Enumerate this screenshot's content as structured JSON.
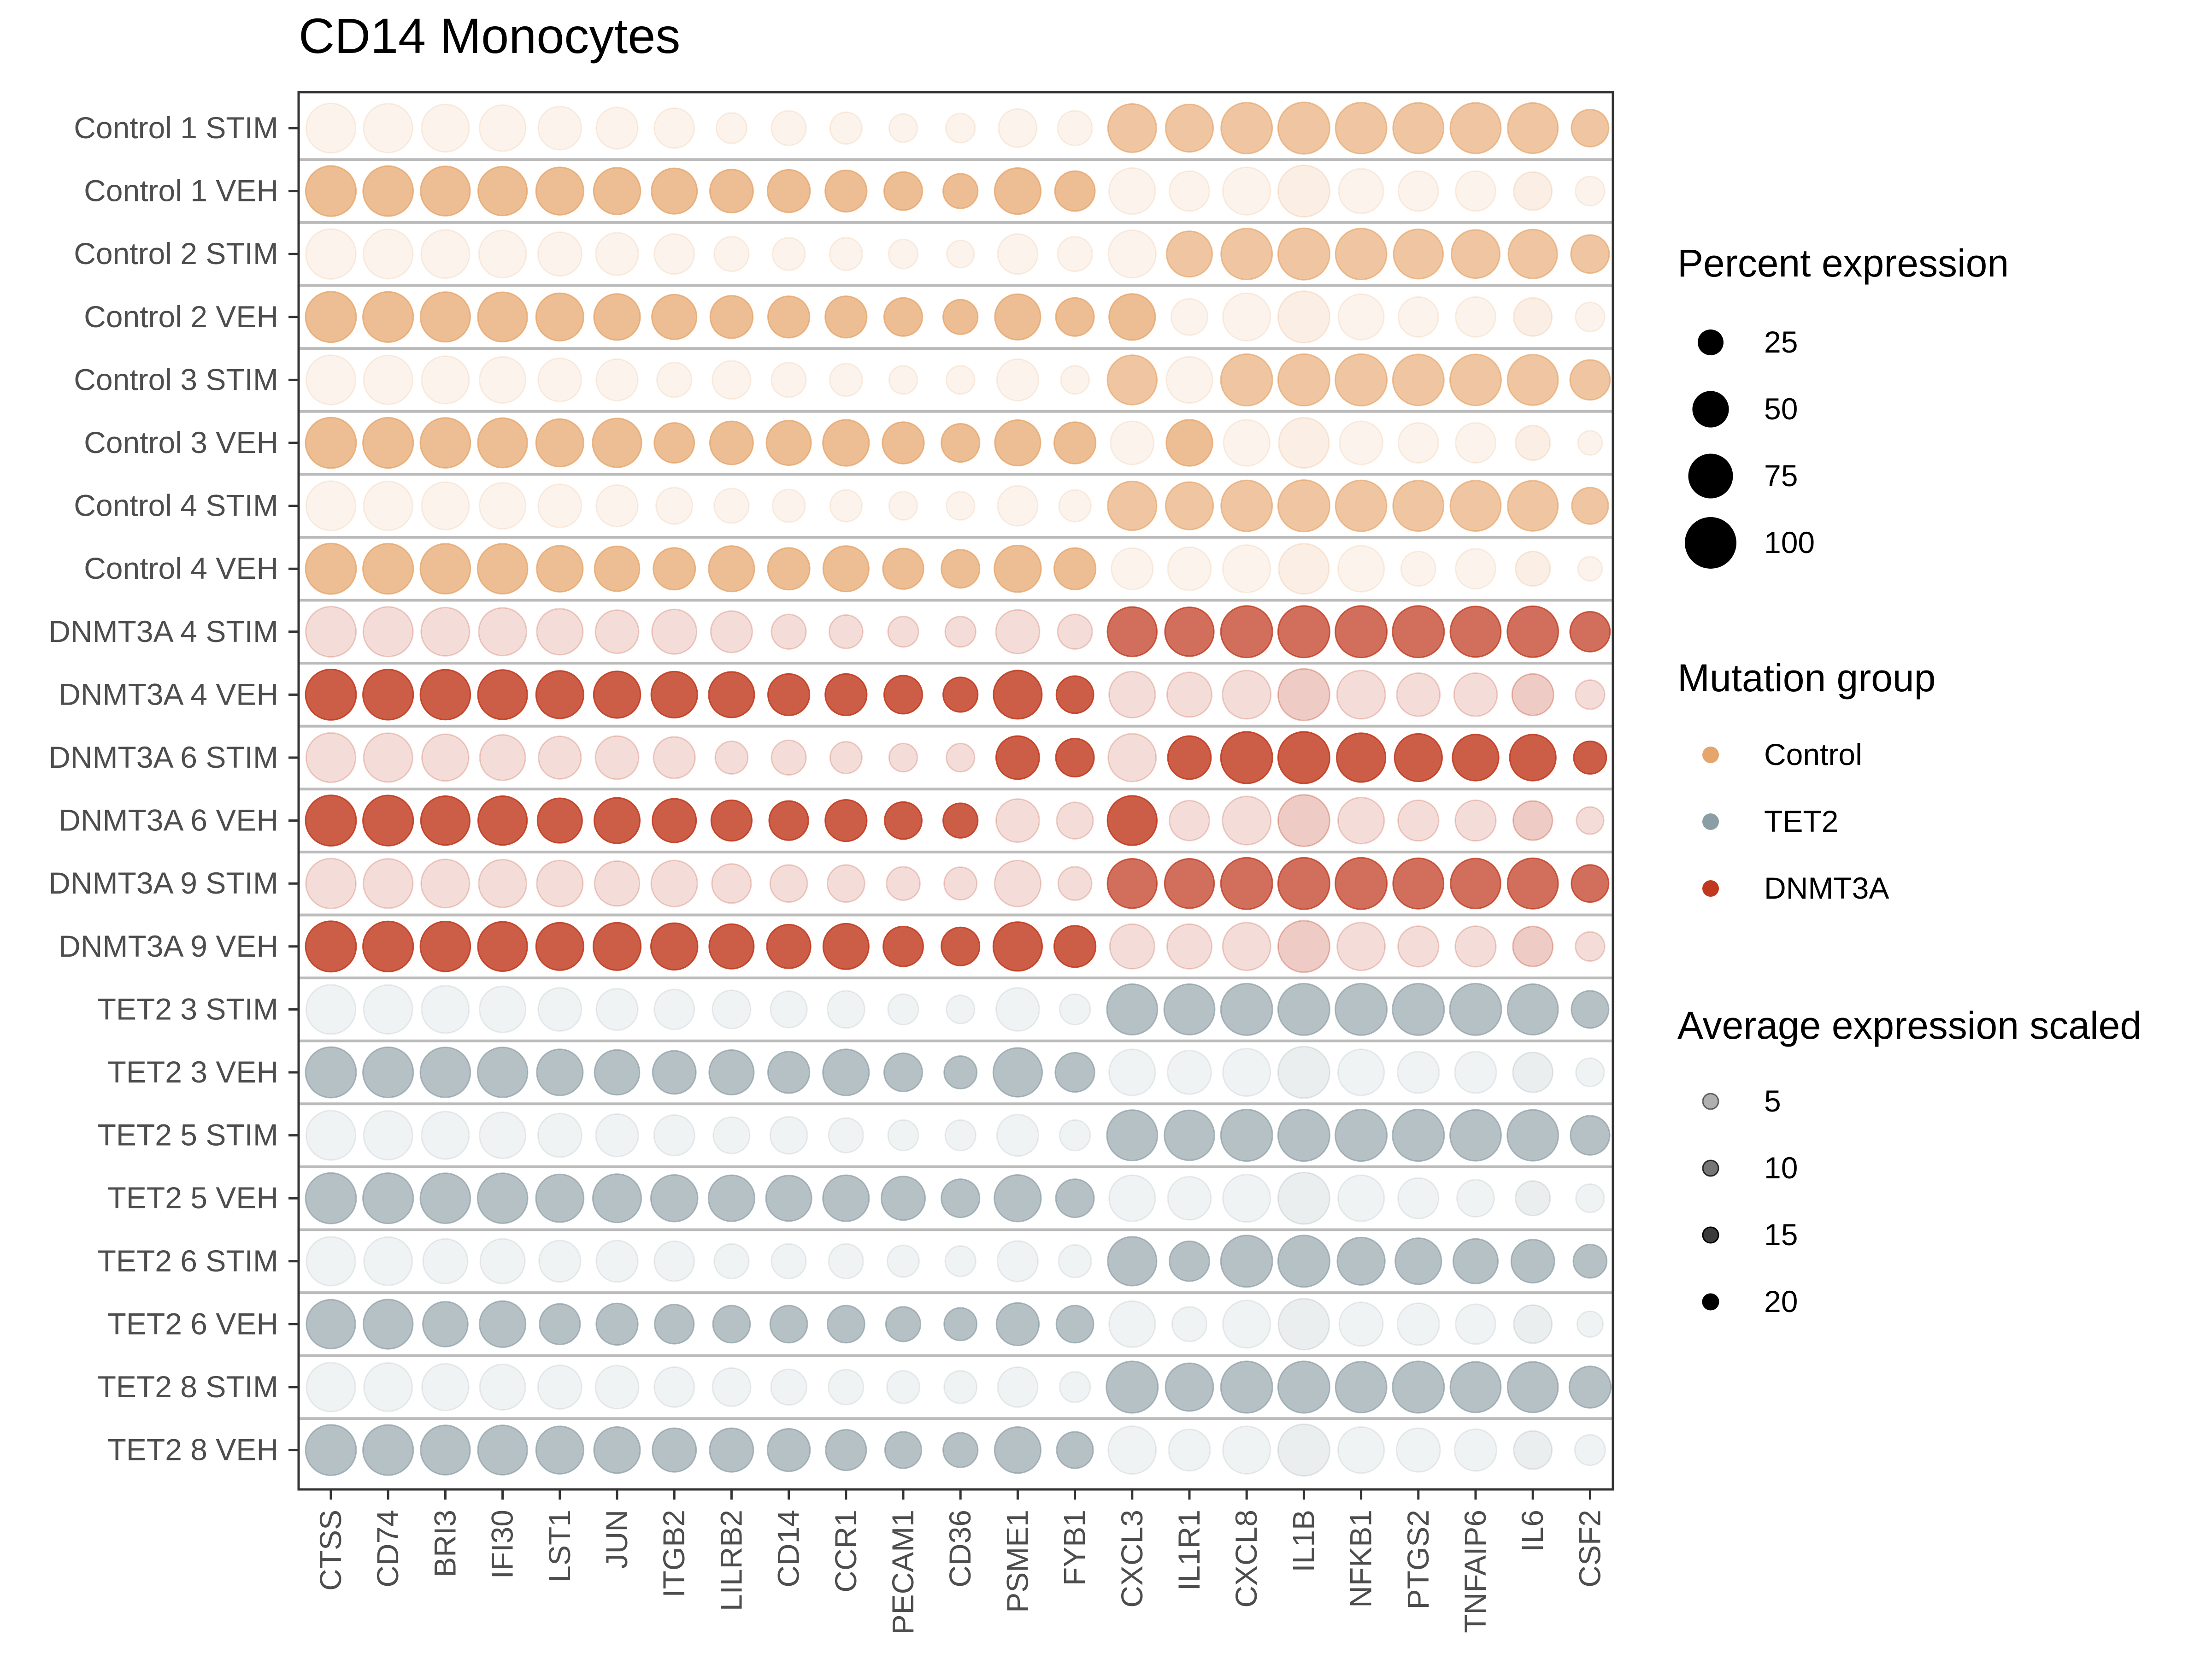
{
  "chart_data": {
    "type": "dot_plot",
    "title": "CD14 Monocytes",
    "xlabel": "",
    "ylabel": "",
    "genes": [
      "CTSS",
      "CD74",
      "BRI3",
      "IFI30",
      "LST1",
      "JUN",
      "ITGB2",
      "LILRB2",
      "CD14",
      "CCR1",
      "PECAM1",
      "CD36",
      "PSME1",
      "FYB1",
      "CXCL3",
      "IL1R1",
      "CXCL8",
      "IL1B",
      "NFKB1",
      "PTGS2",
      "TNFAIP6",
      "IL6",
      "CSF2"
    ],
    "rows": [
      {
        "label": "Control 1 STIM",
        "group": "Control",
        "pct": [
          92,
          90,
          85,
          80,
          70,
          65,
          60,
          35,
          45,
          38,
          30,
          32,
          55,
          45,
          88,
          85,
          98,
          100,
          98,
          96,
          96,
          95,
          52
        ],
        "avg": [
          1,
          1,
          1,
          1,
          1,
          1,
          1,
          1,
          1,
          1,
          1,
          1,
          1,
          1,
          12,
          12,
          12,
          12,
          12,
          12,
          12,
          12,
          12
        ]
      },
      {
        "label": "Control 1 VEH",
        "group": "Control",
        "pct": [
          95,
          94,
          92,
          90,
          85,
          82,
          78,
          70,
          68,
          65,
          55,
          45,
          80,
          60,
          80,
          60,
          85,
          100,
          75,
          60,
          60,
          55,
          32
        ],
        "avg": [
          14,
          14,
          14,
          14,
          14,
          14,
          14,
          14,
          14,
          14,
          14,
          14,
          14,
          14,
          1,
          1,
          1,
          2,
          1,
          1,
          1,
          2,
          1
        ]
      },
      {
        "label": "Control 2 STIM",
        "group": "Control",
        "pct": [
          94,
          92,
          88,
          84,
          72,
          68,
          60,
          45,
          40,
          40,
          32,
          28,
          60,
          45,
          85,
          78,
          98,
          100,
          98,
          92,
          88,
          90,
          55
        ],
        "avg": [
          1,
          1,
          1,
          1,
          1,
          1,
          1,
          1,
          1,
          1,
          1,
          1,
          1,
          1,
          1,
          12,
          12,
          12,
          12,
          12,
          12,
          12,
          12
        ]
      },
      {
        "label": "Control 2 VEH",
        "group": "Control",
        "pct": [
          96,
          95,
          93,
          92,
          85,
          80,
          75,
          68,
          65,
          65,
          55,
          45,
          78,
          55,
          80,
          50,
          85,
          100,
          78,
          60,
          60,
          55,
          32
        ],
        "avg": [
          14,
          14,
          14,
          14,
          14,
          14,
          14,
          14,
          14,
          14,
          14,
          14,
          14,
          14,
          14,
          1,
          1,
          2,
          1,
          1,
          1,
          2,
          1
        ]
      },
      {
        "label": "Control 3 STIM",
        "group": "Control",
        "pct": [
          92,
          90,
          85,
          80,
          70,
          65,
          45,
          55,
          45,
          40,
          30,
          30,
          65,
          30,
          92,
          80,
          100,
          100,
          100,
          98,
          98,
          96,
          60
        ],
        "avg": [
          1,
          1,
          1,
          1,
          1,
          1,
          1,
          1,
          1,
          1,
          1,
          1,
          1,
          1,
          12,
          1,
          12,
          12,
          12,
          12,
          12,
          12,
          12
        ]
      },
      {
        "label": "Control 3 VEH",
        "group": "Control",
        "pct": [
          96,
          95,
          94,
          92,
          85,
          90,
          60,
          70,
          75,
          80,
          65,
          55,
          78,
          65,
          70,
          80,
          80,
          95,
          70,
          60,
          60,
          45,
          22
        ],
        "avg": [
          14,
          14,
          14,
          14,
          14,
          14,
          14,
          14,
          14,
          14,
          14,
          14,
          14,
          14,
          1,
          14,
          1,
          2,
          1,
          1,
          1,
          2,
          1
        ]
      },
      {
        "label": "Control 4 STIM",
        "group": "Control",
        "pct": [
          92,
          90,
          85,
          80,
          70,
          65,
          50,
          45,
          40,
          38,
          30,
          30,
          60,
          38,
          90,
          85,
          98,
          100,
          98,
          96,
          96,
          95,
          50
        ],
        "avg": [
          1,
          1,
          1,
          1,
          1,
          1,
          1,
          1,
          1,
          1,
          1,
          1,
          1,
          1,
          12,
          12,
          12,
          12,
          12,
          12,
          12,
          12,
          12
        ]
      },
      {
        "label": "Control 4 VEH",
        "group": "Control",
        "pct": [
          96,
          95,
          94,
          94,
          80,
          76,
          66,
          78,
          66,
          78,
          62,
          55,
          82,
          65,
          65,
          70,
          85,
          95,
          80,
          45,
          60,
          45,
          22
        ],
        "avg": [
          14,
          14,
          14,
          14,
          14,
          14,
          14,
          14,
          14,
          14,
          14,
          14,
          14,
          14,
          1,
          1,
          1,
          2,
          1,
          1,
          1,
          2,
          1
        ]
      },
      {
        "label": "DNMT3A 4 STIM",
        "group": "DNMT3A",
        "pct": [
          95,
          93,
          88,
          86,
          80,
          70,
          75,
          65,
          45,
          42,
          35,
          35,
          72,
          45,
          92,
          90,
          100,
          100,
          100,
          100,
          96,
          98,
          60
        ],
        "avg": [
          2,
          2,
          2,
          2,
          2,
          2,
          2,
          2,
          2,
          2,
          2,
          2,
          2,
          2,
          14,
          14,
          14,
          14,
          14,
          14,
          14,
          14,
          14
        ]
      },
      {
        "label": "DNMT3A 4 VEH",
        "group": "DNMT3A",
        "pct": [
          96,
          95,
          94,
          92,
          85,
          82,
          80,
          78,
          65,
          65,
          55,
          45,
          88,
          52,
          80,
          75,
          88,
          100,
          88,
          70,
          70,
          65,
          32
        ],
        "avg": [
          16,
          16,
          16,
          16,
          16,
          16,
          16,
          16,
          16,
          16,
          16,
          16,
          16,
          16,
          2,
          2,
          2,
          4,
          2,
          2,
          2,
          4,
          2
        ]
      },
      {
        "label": "DNMT3A 6 STIM",
        "group": "DNMT3A",
        "pct": [
          92,
          90,
          82,
          78,
          68,
          70,
          65,
          40,
          45,
          38,
          30,
          30,
          70,
          55,
          86,
          70,
          100,
          100,
          90,
          85,
          80,
          80,
          40
        ],
        "avg": [
          2,
          2,
          2,
          2,
          2,
          2,
          2,
          2,
          2,
          2,
          2,
          2,
          16,
          16,
          2,
          16,
          16,
          16,
          16,
          16,
          16,
          16,
          16
        ]
      },
      {
        "label": "DNMT3A 6 VEH",
        "group": "DNMT3A",
        "pct": [
          96,
          95,
          90,
          90,
          75,
          78,
          72,
          62,
          58,
          65,
          52,
          45,
          70,
          50,
          92,
          60,
          88,
          100,
          80,
          62,
          62,
          58,
          28
        ],
        "avg": [
          16,
          16,
          16,
          16,
          16,
          16,
          16,
          16,
          16,
          16,
          16,
          16,
          2,
          2,
          16,
          2,
          2,
          4,
          2,
          2,
          2,
          4,
          2
        ]
      },
      {
        "label": "DNMT3A 9 STIM",
        "group": "DNMT3A",
        "pct": [
          94,
          92,
          88,
          86,
          80,
          76,
          80,
          58,
          52,
          52,
          42,
          40,
          80,
          42,
          92,
          92,
          100,
          100,
          100,
          96,
          94,
          96,
          52
        ],
        "avg": [
          2,
          2,
          2,
          2,
          2,
          2,
          2,
          2,
          2,
          2,
          2,
          2,
          2,
          2,
          14,
          14,
          14,
          14,
          14,
          14,
          14,
          14,
          14
        ]
      },
      {
        "label": "DNMT3A 9 VEH",
        "group": "DNMT3A",
        "pct": [
          96,
          95,
          94,
          92,
          85,
          85,
          82,
          75,
          72,
          78,
          60,
          55,
          90,
          65,
          75,
          75,
          86,
          100,
          86,
          62,
          62,
          60,
          32
        ],
        "avg": [
          16,
          16,
          16,
          16,
          16,
          16,
          16,
          16,
          16,
          16,
          16,
          16,
          16,
          16,
          2,
          2,
          2,
          4,
          2,
          2,
          2,
          4,
          2
        ]
      },
      {
        "label": "TET2 3 STIM",
        "group": "TET2",
        "pct": [
          92,
          90,
          85,
          80,
          70,
          65,
          60,
          55,
          50,
          52,
          35,
          30,
          70,
          35,
          96,
          96,
          100,
          100,
          100,
          100,
          100,
          96,
          52
        ],
        "avg": [
          1,
          1,
          1,
          1,
          1,
          1,
          1,
          1,
          1,
          1,
          1,
          1,
          1,
          1,
          12,
          12,
          12,
          12,
          12,
          12,
          12,
          12,
          12
        ]
      },
      {
        "label": "TET2 3 VEH",
        "group": "TET2",
        "pct": [
          96,
          95,
          94,
          94,
          80,
          76,
          70,
          75,
          65,
          80,
          55,
          40,
          90,
          58,
          80,
          72,
          85,
          100,
          80,
          65,
          65,
          60,
          30
        ],
        "avg": [
          12,
          12,
          12,
          12,
          12,
          12,
          12,
          12,
          12,
          12,
          12,
          12,
          12,
          12,
          1,
          1,
          1,
          2,
          1,
          1,
          1,
          2,
          1
        ]
      },
      {
        "label": "TET2 5 STIM",
        "group": "TET2",
        "pct": [
          92,
          90,
          85,
          80,
          72,
          68,
          62,
          50,
          52,
          45,
          35,
          35,
          65,
          35,
          96,
          94,
          100,
          100,
          100,
          100,
          98,
          98,
          58
        ],
        "avg": [
          1,
          1,
          1,
          1,
          1,
          1,
          1,
          1,
          1,
          1,
          1,
          1,
          1,
          1,
          12,
          12,
          12,
          12,
          12,
          12,
          12,
          12,
          12
        ]
      },
      {
        "label": "TET2 5 VEH",
        "group": "TET2",
        "pct": [
          96,
          95,
          94,
          94,
          86,
          88,
          82,
          80,
          78,
          80,
          72,
          55,
          82,
          55,
          80,
          70,
          85,
          100,
          80,
          62,
          52,
          45,
          30
        ],
        "avg": [
          12,
          12,
          12,
          12,
          12,
          12,
          12,
          12,
          12,
          12,
          12,
          12,
          12,
          12,
          1,
          1,
          1,
          2,
          1,
          1,
          1,
          2,
          1
        ]
      },
      {
        "label": "TET2 6 STIM",
        "group": "TET2",
        "pct": [
          90,
          88,
          75,
          75,
          65,
          65,
          60,
          45,
          45,
          45,
          38,
          35,
          62,
          40,
          90,
          60,
          100,
          100,
          85,
          80,
          75,
          70,
          42
        ],
        "avg": [
          1,
          1,
          1,
          1,
          1,
          1,
          1,
          1,
          1,
          1,
          1,
          1,
          1,
          1,
          12,
          12,
          12,
          12,
          12,
          12,
          12,
          12,
          12
        ]
      },
      {
        "label": "TET2 6 VEH",
        "group": "TET2",
        "pct": [
          90,
          92,
          76,
          80,
          62,
          65,
          58,
          52,
          52,
          52,
          45,
          40,
          68,
          52,
          80,
          45,
          85,
          98,
          72,
          66,
          60,
          55,
          25
        ],
        "avg": [
          12,
          12,
          12,
          12,
          12,
          12,
          12,
          12,
          12,
          12,
          12,
          12,
          12,
          12,
          1,
          1,
          1,
          2,
          1,
          1,
          1,
          2,
          1
        ]
      },
      {
        "label": "TET2 8 STIM",
        "group": "TET2",
        "pct": [
          90,
          88,
          82,
          78,
          72,
          70,
          60,
          55,
          48,
          46,
          40,
          40,
          60,
          35,
          100,
          86,
          100,
          100,
          98,
          100,
          96,
          96,
          65
        ],
        "avg": [
          1,
          1,
          1,
          1,
          1,
          1,
          1,
          1,
          1,
          1,
          1,
          1,
          1,
          1,
          12,
          12,
          12,
          12,
          12,
          12,
          12,
          12,
          12
        ]
      },
      {
        "label": "TET2 8 VEH",
        "group": "TET2",
        "pct": [
          96,
          95,
          92,
          92,
          85,
          80,
          72,
          72,
          68,
          62,
          50,
          45,
          80,
          50,
          86,
          65,
          85,
          100,
          80,
          72,
          66,
          55,
          35
        ],
        "avg": [
          12,
          12,
          12,
          12,
          12,
          12,
          12,
          12,
          12,
          12,
          12,
          12,
          12,
          12,
          1,
          1,
          1,
          2,
          1,
          1,
          1,
          2,
          1
        ]
      }
    ],
    "group_colors": {
      "Control": "#E6A56A",
      "TET2": "#8B9DA5",
      "DNMT3A": "#C0391E"
    },
    "avg_range": [
      0,
      20
    ],
    "legends": [
      {
        "title": "Percent expression",
        "type": "size",
        "values": [
          25,
          50,
          75,
          100
        ],
        "labels": [
          "25",
          "50",
          "75",
          "100"
        ]
      },
      {
        "title": "Mutation group",
        "type": "color",
        "keys": [
          "Control",
          "TET2",
          "DNMT3A"
        ],
        "labels": [
          "Control",
          "TET2",
          "DNMT3A"
        ]
      },
      {
        "title": "Average expression scaled",
        "type": "alpha",
        "values": [
          5,
          10,
          15,
          20
        ],
        "labels": [
          "5",
          "10",
          "15",
          "20"
        ]
      }
    ],
    "legend_position": "right",
    "grid": "horizontal row separators",
    "separator_color": "#BBBBBB"
  }
}
